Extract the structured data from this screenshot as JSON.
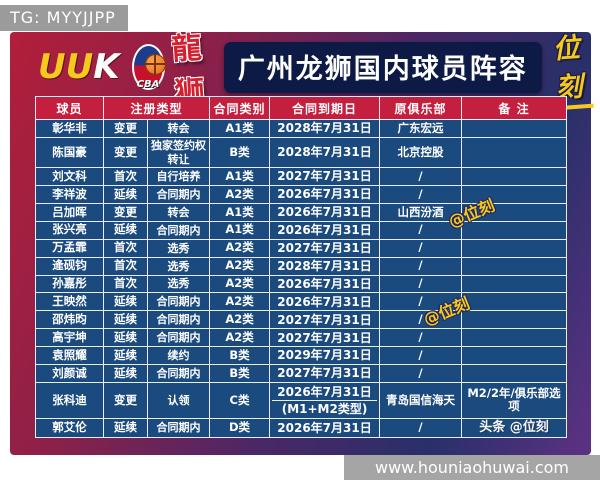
{
  "badges": {
    "telegram": "TG: MYYJJPP",
    "website": "www.houniaohuwai.com"
  },
  "header": {
    "uuk_letters": [
      "U",
      "U",
      "K"
    ],
    "cba_label": "CBA",
    "loong_label": "龍狮",
    "title": "广州龙狮国内球员阵容",
    "brand": "位刻"
  },
  "watermarks": {
    "diagonal_1": "@位刻",
    "diagonal_2": "@位刻",
    "corner": "头条 @位刻"
  },
  "table": {
    "headers": {
      "player": "球员",
      "reg_type": "注册类型",
      "contract_cat": "合同类别",
      "expiry": "合同到期日",
      "former_club": "原俱乐部",
      "remark": "备 注"
    },
    "rows": [
      {
        "name": "彰华非",
        "reg": "变更",
        "method": "转会",
        "cat": "A1类",
        "expiry": "2028年7月31日",
        "club": "广东宏远",
        "note": ""
      },
      {
        "name": "陈国豪",
        "reg": "变更",
        "method": "独家签约权转让",
        "cat": "B类",
        "expiry": "2028年7月31日",
        "club": "北京控股",
        "note": ""
      },
      {
        "name": "刘文科",
        "reg": "首次",
        "method": "自行培养",
        "cat": "A1类",
        "expiry": "2027年7月31日",
        "club": "/",
        "note": ""
      },
      {
        "name": "李祥波",
        "reg": "延续",
        "method": "合同期内",
        "cat": "A2类",
        "expiry": "2026年7月31日",
        "club": "/",
        "note": ""
      },
      {
        "name": "吕加晖",
        "reg": "变更",
        "method": "转会",
        "cat": "A1类",
        "expiry": "2026年7月31日",
        "club": "山西汾酒",
        "note": ""
      },
      {
        "name": "张兴亮",
        "reg": "延续",
        "method": "合同期内",
        "cat": "A1类",
        "expiry": "2026年7月31日",
        "club": "/",
        "note": ""
      },
      {
        "name": "万孟霏",
        "reg": "首次",
        "method": "选秀",
        "cat": "A2类",
        "expiry": "2027年7月31日",
        "club": "/",
        "note": ""
      },
      {
        "name": "逄砚钧",
        "reg": "首次",
        "method": "选秀",
        "cat": "A2类",
        "expiry": "2028年7月31日",
        "club": "/",
        "note": ""
      },
      {
        "name": "孙嘉彤",
        "reg": "首次",
        "method": "选秀",
        "cat": "A2类",
        "expiry": "2026年7月31日",
        "club": "/",
        "note": ""
      },
      {
        "name": "王映然",
        "reg": "延续",
        "method": "合同期内",
        "cat": "A2类",
        "expiry": "2026年7月31日",
        "club": "/",
        "note": ""
      },
      {
        "name": "邵炜昀",
        "reg": "延续",
        "method": "合同期内",
        "cat": "A2类",
        "expiry": "2027年7月31日",
        "club": "/",
        "note": ""
      },
      {
        "name": "高宇坤",
        "reg": "延续",
        "method": "合同期内",
        "cat": "A2类",
        "expiry": "2027年7月31日",
        "club": "/",
        "note": ""
      },
      {
        "name": "袁照耀",
        "reg": "延续",
        "method": "续约",
        "cat": "B类",
        "expiry": "2029年7月31日",
        "club": "/",
        "note": ""
      },
      {
        "name": "刘颜诚",
        "reg": "延续",
        "method": "合同期内",
        "cat": "B类",
        "expiry": "2027年7月31日",
        "club": "/",
        "note": ""
      },
      {
        "name": "张科迪",
        "reg": "变更",
        "method": "认领",
        "cat": "C类",
        "expiry": "2026年7月31日",
        "expiry2": "(M1+M2类型)",
        "club": "青岛国信海天",
        "note": "M2/2年/俱乐部选项"
      },
      {
        "name": "郭艾伦",
        "reg": "延续",
        "method": "合同期内",
        "cat": "D类",
        "expiry": "2026年7月31日",
        "club": "/",
        "note": "",
        "note_watermark": "头条 @位刻"
      }
    ]
  }
}
